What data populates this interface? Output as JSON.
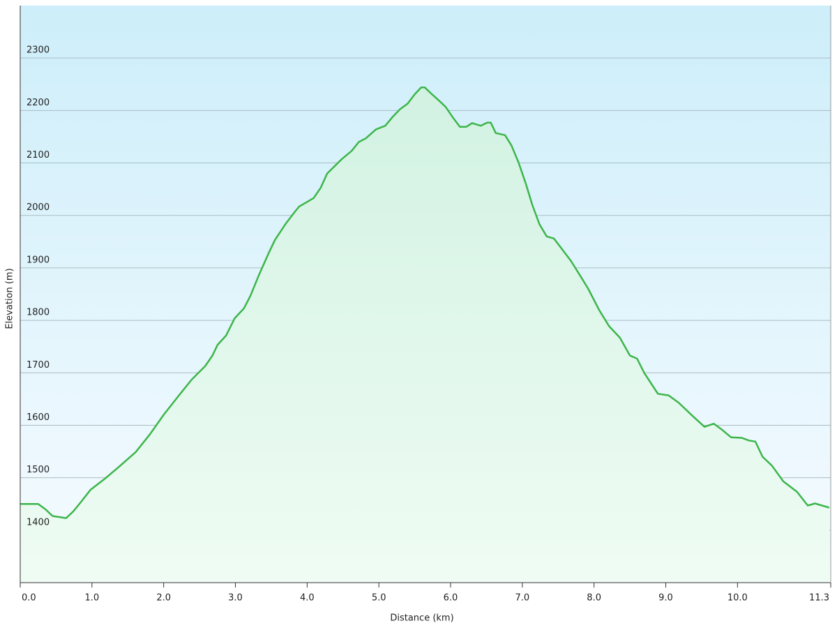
{
  "chart_data": {
    "type": "area",
    "x_label": "Distance (km)",
    "y_label": "Elevation (m)",
    "xlim": [
      0,
      11.3
    ],
    "ylim": [
      1300,
      2400
    ],
    "xticks": [
      {
        "value": 0,
        "label": "0.0"
      },
      {
        "value": 1,
        "label": "1.0"
      },
      {
        "value": 2,
        "label": "2.0"
      },
      {
        "value": 3,
        "label": "3.0"
      },
      {
        "value": 4,
        "label": "4.0"
      },
      {
        "value": 5,
        "label": "5.0"
      },
      {
        "value": 6,
        "label": "6.0"
      },
      {
        "value": 7,
        "label": "7.0"
      },
      {
        "value": 8,
        "label": "8.0"
      },
      {
        "value": 9,
        "label": "9.0"
      },
      {
        "value": 10,
        "label": "10.0"
      },
      11.3
    ],
    "yticks": [
      1400,
      1500,
      1600,
      1700,
      1800,
      1900,
      2000,
      2100,
      2200,
      2300
    ],
    "grid": true,
    "color": "#3cb54a",
    "x": [
      0,
      0.25,
      0.35,
      0.45,
      0.64,
      0.74,
      0.83,
      0.98,
      1.17,
      1.37,
      1.61,
      1.81,
      2.0,
      2.19,
      2.39,
      2.58,
      2.68,
      2.75,
      2.87,
      2.99,
      3.12,
      3.21,
      3.33,
      3.46,
      3.55,
      3.7,
      3.84,
      3.89,
      4.09,
      4.19,
      4.28,
      4.48,
      4.62,
      4.72,
      4.82,
      4.96,
      5.09,
      5.2,
      5.3,
      5.4,
      5.5,
      5.59,
      5.64,
      5.74,
      5.83,
      5.93,
      6.03,
      6.13,
      6.22,
      6.3,
      6.42,
      6.51,
      6.56,
      6.63,
      6.76,
      6.85,
      6.95,
      7.05,
      7.14,
      7.24,
      7.34,
      7.44,
      7.53,
      7.68,
      7.83,
      7.92,
      8.07,
      8.21,
      8.36,
      8.5,
      8.6,
      8.7,
      8.89,
      9.04,
      9.18,
      9.38,
      9.54,
      9.67,
      9.77,
      9.91,
      10.06,
      10.16,
      10.25,
      10.35,
      10.48,
      10.64,
      10.83,
      10.98,
      11.08,
      11.28
    ],
    "values": [
      1450,
      1450,
      1440,
      1427,
      1423,
      1436,
      1451,
      1477,
      1497,
      1520,
      1549,
      1583,
      1620,
      1653,
      1687,
      1713,
      1733,
      1753,
      1771,
      1804,
      1823,
      1847,
      1887,
      1927,
      1953,
      1984,
      2009,
      2017,
      2033,
      2053,
      2080,
      2107,
      2123,
      2140,
      2147,
      2164,
      2171,
      2189,
      2203,
      2213,
      2231,
      2244,
      2244,
      2231,
      2220,
      2207,
      2187,
      2169,
      2169,
      2176,
      2171,
      2177,
      2177,
      2157,
      2153,
      2133,
      2100,
      2060,
      2020,
      1983,
      1960,
      1956,
      1940,
      1913,
      1880,
      1860,
      1820,
      1789,
      1767,
      1733,
      1727,
      1700,
      1660,
      1657,
      1643,
      1617,
      1597,
      1603,
      1593,
      1577,
      1576,
      1571,
      1569,
      1540,
      1523,
      1493,
      1473,
      1447,
      1451,
      1443
    ]
  }
}
